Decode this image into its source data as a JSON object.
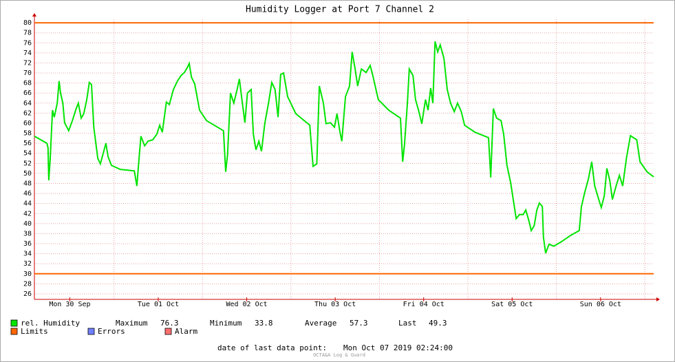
{
  "chart_data": {
    "type": "line",
    "title": "Humidity Logger at Port 7 Channel 2",
    "xlim": [
      2.4,
      170.4
    ],
    "ylim": [
      24.9,
      80.7
    ],
    "yticks": [
      26,
      28,
      30,
      32,
      34,
      36,
      38,
      40,
      42,
      44,
      46,
      48,
      50,
      52,
      54,
      56,
      58,
      60,
      62,
      64,
      66,
      68,
      70,
      72,
      74,
      76,
      78,
      80
    ],
    "xticks": [
      {
        "value": 12,
        "label": "Mon 30 Sep"
      },
      {
        "value": 36,
        "label": "Tue 01 Oct"
      },
      {
        "value": 60,
        "label": "Wed 02 Oct"
      },
      {
        "value": 84,
        "label": "Thu 03 Oct"
      },
      {
        "value": 108,
        "label": "Fri 04 Oct"
      },
      {
        "value": 132,
        "label": "Sat 05 Oct"
      },
      {
        "value": 156,
        "label": "Sun 06 Oct"
      }
    ],
    "xgrid": [
      24,
      48,
      72,
      96,
      120,
      144,
      168
    ],
    "grid": true,
    "x": [
      2.4,
      5.8,
      6.1,
      6.3,
      6.7,
      7.3,
      7.8,
      8.6,
      9.1,
      9.5,
      10.1,
      10.6,
      11.7,
      12.7,
      13.6,
      14.3,
      15.1,
      15.8,
      16.6,
      17.3,
      17.9,
      18.5,
      19.6,
      20.3,
      21.1,
      21.8,
      22.4,
      23.3,
      25.7,
      29.5,
      30.2,
      30.8,
      31.3,
      32.3,
      33.2,
      34.5,
      35.6,
      36.4,
      37.1,
      38.2,
      39,
      40.1,
      41.2,
      42.2,
      43.1,
      43.9,
      44.4,
      45,
      45.9,
      47.2,
      49.1,
      53.7,
      54.3,
      54.8,
      55.6,
      56.5,
      57.4,
      58,
      58.7,
      59.5,
      60.2,
      61.2,
      61.8,
      62.5,
      63.3,
      64,
      64.9,
      65.9,
      66.8,
      67.7,
      68.5,
      69.2,
      70,
      71.1,
      73.3,
      77.1,
      78,
      79,
      79.7,
      80.8,
      81.5,
      82.7,
      83.8,
      84.5,
      85.3,
      85.8,
      86.8,
      87.9,
      88.6,
      89.4,
      90.1,
      91.1,
      92.4,
      93.5,
      94.2,
      95.7,
      98.5,
      101.7,
      102.3,
      102.8,
      103.6,
      104.1,
      105.1,
      105.8,
      106.6,
      107.5,
      108.5,
      109.2,
      109.9,
      110.5,
      111.1,
      111.8,
      112.5,
      113.5,
      114.4,
      115.3,
      116.3,
      117.2,
      118.2,
      119.1,
      121.9,
      125.6,
      126.2,
      126.9,
      127.8,
      129,
      129.7,
      130.6,
      131.6,
      132.3,
      133.1,
      134,
      135,
      135.7,
      136.5,
      137.2,
      138,
      138.7,
      139.4,
      140.2,
      140.5,
      141.1,
      142,
      143.3,
      145.2,
      148,
      150.2,
      150.8,
      151.7,
      152.7,
      153.6,
      154.4,
      155.5,
      156.2,
      157,
      157.7,
      158.5,
      159.2,
      160.2,
      161.1,
      162,
      163,
      164.1,
      165.8,
      166.7,
      168.6,
      170.4
    ],
    "series": [
      {
        "name": "rel. Humidity",
        "color": "#00e400",
        "values": [
          57.4,
          56.0,
          55.1,
          48.6,
          53,
          62.6,
          61.2,
          64,
          68.4,
          66,
          64,
          60.1,
          58.5,
          60.5,
          62.6,
          64,
          61,
          61.9,
          64.7,
          68.1,
          67.7,
          59.2,
          53,
          51.9,
          54.1,
          56,
          53.3,
          51.6,
          50.8,
          50.5,
          47.5,
          53,
          57.4,
          55.5,
          56.4,
          56.7,
          57.8,
          59.6,
          58.2,
          64.2,
          63.7,
          66.7,
          68.4,
          69.5,
          70.1,
          71.1,
          71.9,
          69.2,
          67.8,
          62.6,
          60.5,
          58.5,
          50.3,
          53.7,
          66,
          64,
          66.7,
          68.8,
          64.7,
          60.1,
          66,
          66.7,
          57.8,
          54.7,
          56.4,
          54.4,
          59.9,
          64,
          68.1,
          66.7,
          61.2,
          69.7,
          70,
          65.3,
          61.9,
          59.6,
          51.4,
          51.9,
          67.4,
          64,
          59.9,
          60.1,
          59.2,
          61.9,
          58.2,
          56.4,
          65.3,
          67.4,
          74.2,
          70.8,
          67.4,
          70.8,
          70.1,
          71.5,
          69.5,
          64.7,
          62.6,
          61,
          52.3,
          55.8,
          64,
          70.8,
          69.5,
          64.7,
          62.6,
          59.9,
          64.7,
          62.6,
          67,
          64,
          76.3,
          74.2,
          75.6,
          72.9,
          66.7,
          64,
          62.3,
          64,
          62.3,
          59.6,
          58.2,
          57.1,
          49.2,
          62.9,
          61,
          60.5,
          57.8,
          51.6,
          48.2,
          44.8,
          41,
          41.8,
          41.8,
          42.7,
          40.7,
          38.6,
          39.6,
          42.7,
          44.1,
          43.4,
          37.3,
          34.1,
          35.9,
          35.5,
          36.3,
          37.7,
          38.6,
          43.4,
          46.2,
          48.9,
          52.3,
          47.5,
          44.8,
          43.2,
          45.5,
          51,
          48.6,
          44.8,
          47.5,
          49.6,
          47.5,
          53,
          57.5,
          56.7,
          52.3,
          50.3,
          49.3
        ]
      }
    ],
    "limits": {
      "name": "Limits",
      "color": "#ff6600",
      "values": [
        30,
        80
      ]
    },
    "legend_extra": [
      {
        "name": "Errors",
        "color": "#7080ff"
      },
      {
        "name": "Alarm",
        "color": "#ff7070"
      }
    ],
    "stats": [
      {
        "label": "Maximum",
        "value": 76.3
      },
      {
        "label": "Minimum",
        "value": 33.8
      },
      {
        "label": "Average",
        "value": 57.3
      },
      {
        "label": "Last",
        "value": 49.3
      }
    ],
    "footer": {
      "label": "date of last data point:",
      "value": "Mon Oct 07 2019 02:24:00"
    },
    "watermark": "OCTA&A Log & Guard"
  }
}
